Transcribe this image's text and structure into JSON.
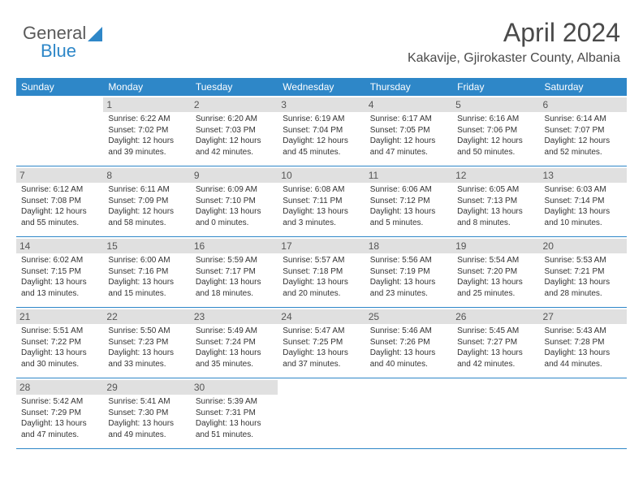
{
  "brand": {
    "part1": "General",
    "part2": "Blue"
  },
  "title": "April 2024",
  "location": "Kakavije, Gjirokaster County, Albania",
  "colors": {
    "header_bg": "#2e87c8",
    "header_text": "#ffffff",
    "daynum_bg": "#e0e0e0",
    "border": "#2e87c8",
    "text": "#333333"
  },
  "dow": [
    "Sunday",
    "Monday",
    "Tuesday",
    "Wednesday",
    "Thursday",
    "Friday",
    "Saturday"
  ],
  "weeks": [
    [
      null,
      {
        "n": "1",
        "sr": "Sunrise: 6:22 AM",
        "ss": "Sunset: 7:02 PM",
        "d1": "Daylight: 12 hours",
        "d2": "and 39 minutes."
      },
      {
        "n": "2",
        "sr": "Sunrise: 6:20 AM",
        "ss": "Sunset: 7:03 PM",
        "d1": "Daylight: 12 hours",
        "d2": "and 42 minutes."
      },
      {
        "n": "3",
        "sr": "Sunrise: 6:19 AM",
        "ss": "Sunset: 7:04 PM",
        "d1": "Daylight: 12 hours",
        "d2": "and 45 minutes."
      },
      {
        "n": "4",
        "sr": "Sunrise: 6:17 AM",
        "ss": "Sunset: 7:05 PM",
        "d1": "Daylight: 12 hours",
        "d2": "and 47 minutes."
      },
      {
        "n": "5",
        "sr": "Sunrise: 6:16 AM",
        "ss": "Sunset: 7:06 PM",
        "d1": "Daylight: 12 hours",
        "d2": "and 50 minutes."
      },
      {
        "n": "6",
        "sr": "Sunrise: 6:14 AM",
        "ss": "Sunset: 7:07 PM",
        "d1": "Daylight: 12 hours",
        "d2": "and 52 minutes."
      }
    ],
    [
      {
        "n": "7",
        "sr": "Sunrise: 6:12 AM",
        "ss": "Sunset: 7:08 PM",
        "d1": "Daylight: 12 hours",
        "d2": "and 55 minutes."
      },
      {
        "n": "8",
        "sr": "Sunrise: 6:11 AM",
        "ss": "Sunset: 7:09 PM",
        "d1": "Daylight: 12 hours",
        "d2": "and 58 minutes."
      },
      {
        "n": "9",
        "sr": "Sunrise: 6:09 AM",
        "ss": "Sunset: 7:10 PM",
        "d1": "Daylight: 13 hours",
        "d2": "and 0 minutes."
      },
      {
        "n": "10",
        "sr": "Sunrise: 6:08 AM",
        "ss": "Sunset: 7:11 PM",
        "d1": "Daylight: 13 hours",
        "d2": "and 3 minutes."
      },
      {
        "n": "11",
        "sr": "Sunrise: 6:06 AM",
        "ss": "Sunset: 7:12 PM",
        "d1": "Daylight: 13 hours",
        "d2": "and 5 minutes."
      },
      {
        "n": "12",
        "sr": "Sunrise: 6:05 AM",
        "ss": "Sunset: 7:13 PM",
        "d1": "Daylight: 13 hours",
        "d2": "and 8 minutes."
      },
      {
        "n": "13",
        "sr": "Sunrise: 6:03 AM",
        "ss": "Sunset: 7:14 PM",
        "d1": "Daylight: 13 hours",
        "d2": "and 10 minutes."
      }
    ],
    [
      {
        "n": "14",
        "sr": "Sunrise: 6:02 AM",
        "ss": "Sunset: 7:15 PM",
        "d1": "Daylight: 13 hours",
        "d2": "and 13 minutes."
      },
      {
        "n": "15",
        "sr": "Sunrise: 6:00 AM",
        "ss": "Sunset: 7:16 PM",
        "d1": "Daylight: 13 hours",
        "d2": "and 15 minutes."
      },
      {
        "n": "16",
        "sr": "Sunrise: 5:59 AM",
        "ss": "Sunset: 7:17 PM",
        "d1": "Daylight: 13 hours",
        "d2": "and 18 minutes."
      },
      {
        "n": "17",
        "sr": "Sunrise: 5:57 AM",
        "ss": "Sunset: 7:18 PM",
        "d1": "Daylight: 13 hours",
        "d2": "and 20 minutes."
      },
      {
        "n": "18",
        "sr": "Sunrise: 5:56 AM",
        "ss": "Sunset: 7:19 PM",
        "d1": "Daylight: 13 hours",
        "d2": "and 23 minutes."
      },
      {
        "n": "19",
        "sr": "Sunrise: 5:54 AM",
        "ss": "Sunset: 7:20 PM",
        "d1": "Daylight: 13 hours",
        "d2": "and 25 minutes."
      },
      {
        "n": "20",
        "sr": "Sunrise: 5:53 AM",
        "ss": "Sunset: 7:21 PM",
        "d1": "Daylight: 13 hours",
        "d2": "and 28 minutes."
      }
    ],
    [
      {
        "n": "21",
        "sr": "Sunrise: 5:51 AM",
        "ss": "Sunset: 7:22 PM",
        "d1": "Daylight: 13 hours",
        "d2": "and 30 minutes."
      },
      {
        "n": "22",
        "sr": "Sunrise: 5:50 AM",
        "ss": "Sunset: 7:23 PM",
        "d1": "Daylight: 13 hours",
        "d2": "and 33 minutes."
      },
      {
        "n": "23",
        "sr": "Sunrise: 5:49 AM",
        "ss": "Sunset: 7:24 PM",
        "d1": "Daylight: 13 hours",
        "d2": "and 35 minutes."
      },
      {
        "n": "24",
        "sr": "Sunrise: 5:47 AM",
        "ss": "Sunset: 7:25 PM",
        "d1": "Daylight: 13 hours",
        "d2": "and 37 minutes."
      },
      {
        "n": "25",
        "sr": "Sunrise: 5:46 AM",
        "ss": "Sunset: 7:26 PM",
        "d1": "Daylight: 13 hours",
        "d2": "and 40 minutes."
      },
      {
        "n": "26",
        "sr": "Sunrise: 5:45 AM",
        "ss": "Sunset: 7:27 PM",
        "d1": "Daylight: 13 hours",
        "d2": "and 42 minutes."
      },
      {
        "n": "27",
        "sr": "Sunrise: 5:43 AM",
        "ss": "Sunset: 7:28 PM",
        "d1": "Daylight: 13 hours",
        "d2": "and 44 minutes."
      }
    ],
    [
      {
        "n": "28",
        "sr": "Sunrise: 5:42 AM",
        "ss": "Sunset: 7:29 PM",
        "d1": "Daylight: 13 hours",
        "d2": "and 47 minutes."
      },
      {
        "n": "29",
        "sr": "Sunrise: 5:41 AM",
        "ss": "Sunset: 7:30 PM",
        "d1": "Daylight: 13 hours",
        "d2": "and 49 minutes."
      },
      {
        "n": "30",
        "sr": "Sunrise: 5:39 AM",
        "ss": "Sunset: 7:31 PM",
        "d1": "Daylight: 13 hours",
        "d2": "and 51 minutes."
      },
      null,
      null,
      null,
      null
    ]
  ]
}
